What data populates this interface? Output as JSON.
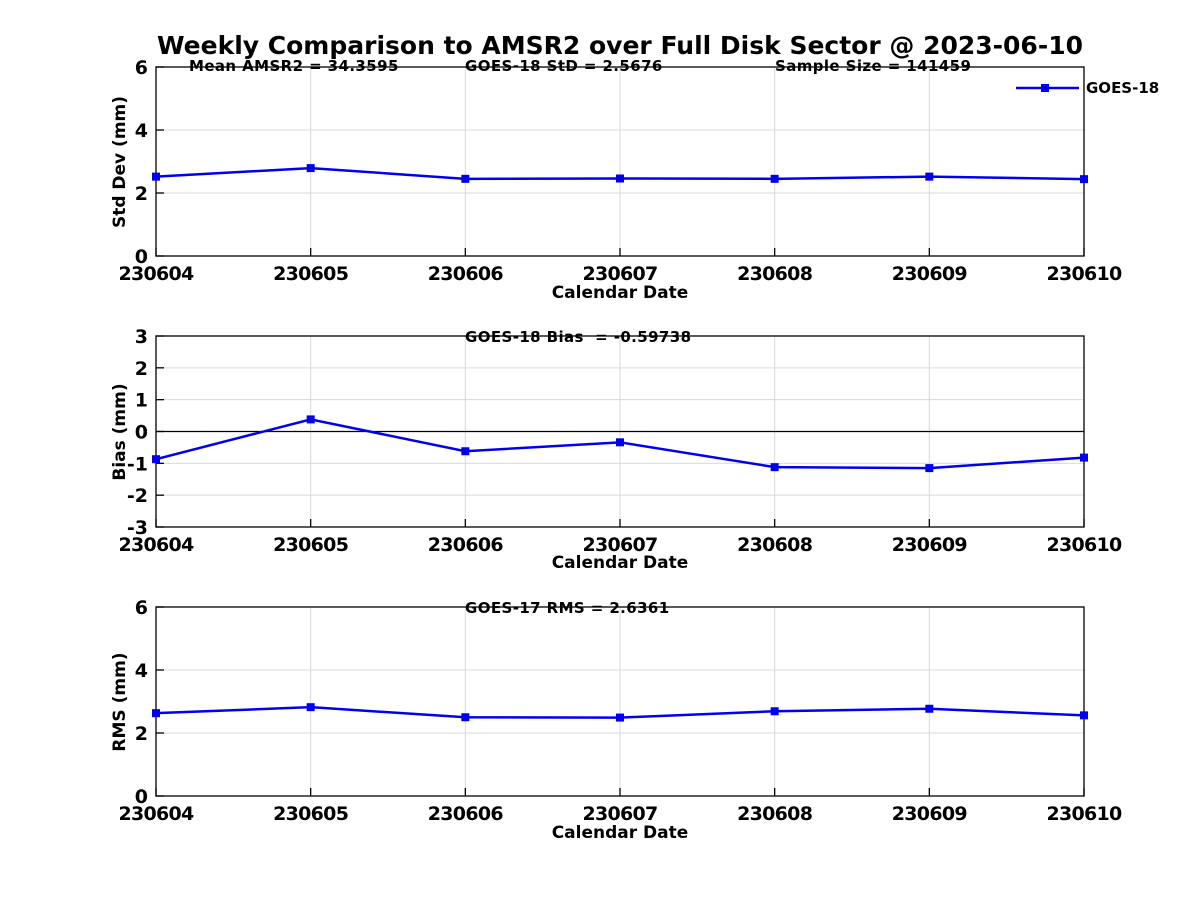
{
  "figure": {
    "title": "Weekly Comparison to AMSR2 over Full Disk Sector @ 2023-06-10",
    "legend": {
      "label": "GOES-18"
    },
    "colors": {
      "line": "#0000ee",
      "grid": "#d9d9d9",
      "axis": "#000000",
      "zero_line": "#000000",
      "text": "#000000"
    }
  },
  "chart_data": [
    {
      "type": "line",
      "title": "",
      "x": [
        "230604",
        "230605",
        "230606",
        "230607",
        "230608",
        "230609",
        "230610"
      ],
      "series": [
        {
          "name": "GOES-18",
          "values": [
            2.52,
            2.79,
            2.45,
            2.46,
            2.45,
            2.52,
            2.44
          ]
        }
      ],
      "xlabel": "Calendar Date",
      "ylabel": "Std Dev (mm)",
      "ylim": [
        0,
        6
      ],
      "yticks": [
        0,
        2,
        4,
        6
      ],
      "grid": true,
      "zero_line": false,
      "legend_position": "top-right-outside",
      "annotations": [
        "Mean AMSR2 = 34.3595",
        "GOES-18 StD = 2.5676",
        "Sample Size = 141459"
      ]
    },
    {
      "type": "line",
      "title": "",
      "x": [
        "230604",
        "230605",
        "230606",
        "230607",
        "230608",
        "230609",
        "230610"
      ],
      "series": [
        {
          "name": "GOES-18",
          "values": [
            -0.87,
            0.38,
            -0.62,
            -0.34,
            -1.12,
            -1.15,
            -0.82
          ]
        }
      ],
      "xlabel": "Calendar Date",
      "ylabel": "Bias (mm)",
      "ylim": [
        -3,
        3
      ],
      "yticks": [
        -3,
        -2,
        -1,
        0,
        1,
        2,
        3
      ],
      "grid": true,
      "zero_line": true,
      "legend_position": "none",
      "annotations": [
        "GOES-18 Bias  = -0.59738"
      ]
    },
    {
      "type": "line",
      "title": "",
      "x": [
        "230604",
        "230605",
        "230606",
        "230607",
        "230608",
        "230609",
        "230610"
      ],
      "series": [
        {
          "name": "GOES-18",
          "values": [
            2.63,
            2.82,
            2.5,
            2.49,
            2.69,
            2.77,
            2.56
          ]
        }
      ],
      "xlabel": "Calendar Date",
      "ylabel": "RMS (mm)",
      "ylim": [
        0,
        6
      ],
      "yticks": [
        0,
        2,
        4,
        6
      ],
      "grid": true,
      "zero_line": false,
      "legend_position": "none",
      "annotations": [
        "GOES-17 RMS = 2.6361"
      ]
    }
  ]
}
